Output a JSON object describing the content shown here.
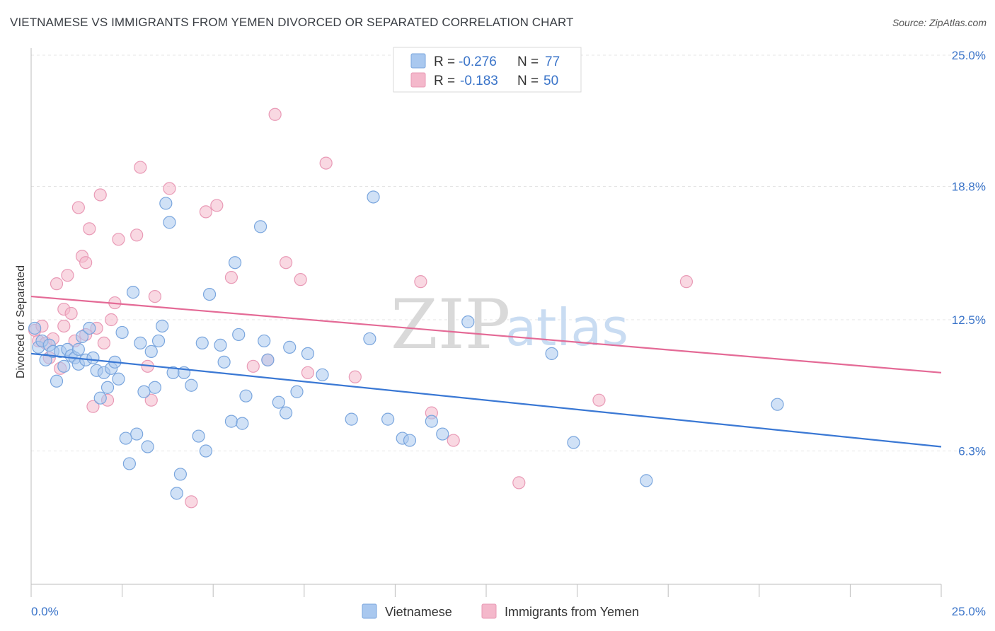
{
  "header": {
    "title": "VIETNAMESE VS IMMIGRANTS FROM YEMEN DIVORCED OR SEPARATED CORRELATION CHART",
    "source": "Source: ZipAtlas.com"
  },
  "watermark": {
    "zip": "ZIP",
    "atlas": "atlas"
  },
  "legend": {
    "r_label": "R =",
    "n_label": "N =",
    "rows": [
      {
        "r": "-0.276",
        "n": "77",
        "color": "#a9c8ef"
      },
      {
        "r": "-0.183",
        "n": "50",
        "color": "#f4b8cb"
      }
    ]
  },
  "bottom_legend": {
    "items": [
      "Vietnamese",
      "Immigrants from Yemen"
    ]
  },
  "chart_data": {
    "type": "scatter",
    "title": "VIETNAMESE VS IMMIGRANTS FROM YEMEN DIVORCED OR SEPARATED CORRELATION CHART",
    "xlabel": "",
    "ylabel": "Divorced or Separated",
    "xlim": [
      0,
      25
    ],
    "ylim": [
      0,
      25
    ],
    "x_tick_labels": [
      "0.0%",
      "25.0%"
    ],
    "y_tick_labels": [
      "6.3%",
      "12.5%",
      "18.8%",
      "25.0%"
    ],
    "y_ticks": [
      6.3,
      12.5,
      18.8,
      25.0
    ],
    "grid": true,
    "legend_position": "top-center",
    "colors": {
      "vietnamese": "#3a78d4",
      "yemen": "#e46a96",
      "vietnamese_fill": "#a9c8ef",
      "yemen_fill": "#f4b8cb"
    },
    "series": [
      {
        "name": "Vietnamese",
        "trend": {
          "x": [
            0,
            25
          ],
          "y": [
            10.9,
            6.5
          ]
        },
        "points": [
          [
            0.1,
            12.1
          ],
          [
            0.2,
            11.2
          ],
          [
            0.3,
            11.5
          ],
          [
            0.4,
            10.6
          ],
          [
            0.5,
            11.3
          ],
          [
            0.6,
            11.0
          ],
          [
            0.7,
            9.6
          ],
          [
            0.8,
            11.0
          ],
          [
            0.9,
            10.3
          ],
          [
            1.0,
            11.1
          ],
          [
            1.1,
            10.8
          ],
          [
            1.2,
            10.7
          ],
          [
            1.3,
            10.4
          ],
          [
            1.4,
            11.7
          ],
          [
            1.5,
            10.6
          ],
          [
            1.6,
            12.1
          ],
          [
            1.7,
            10.7
          ],
          [
            1.8,
            10.1
          ],
          [
            1.9,
            8.8
          ],
          [
            2.0,
            10.0
          ],
          [
            2.1,
            9.3
          ],
          [
            2.2,
            10.2
          ],
          [
            2.3,
            10.5
          ],
          [
            2.4,
            9.7
          ],
          [
            2.5,
            11.9
          ],
          [
            2.6,
            6.9
          ],
          [
            2.7,
            5.7
          ],
          [
            2.8,
            13.8
          ],
          [
            2.9,
            7.1
          ],
          [
            3.0,
            11.4
          ],
          [
            3.1,
            9.1
          ],
          [
            3.2,
            6.5
          ],
          [
            3.3,
            11.0
          ],
          [
            3.4,
            9.3
          ],
          [
            3.5,
            11.5
          ],
          [
            3.6,
            12.2
          ],
          [
            3.7,
            18.0
          ],
          [
            3.8,
            17.1
          ],
          [
            3.9,
            10.0
          ],
          [
            4.0,
            4.3
          ],
          [
            4.1,
            5.2
          ],
          [
            4.2,
            10.0
          ],
          [
            4.4,
            9.4
          ],
          [
            4.6,
            7.0
          ],
          [
            4.7,
            11.4
          ],
          [
            4.8,
            6.3
          ],
          [
            4.9,
            13.7
          ],
          [
            5.2,
            11.3
          ],
          [
            5.3,
            10.5
          ],
          [
            5.5,
            7.7
          ],
          [
            5.6,
            15.2
          ],
          [
            5.7,
            11.8
          ],
          [
            5.8,
            7.6
          ],
          [
            5.9,
            8.9
          ],
          [
            6.3,
            16.9
          ],
          [
            6.4,
            11.5
          ],
          [
            6.5,
            10.6
          ],
          [
            6.8,
            8.6
          ],
          [
            7.0,
            8.1
          ],
          [
            7.1,
            11.2
          ],
          [
            7.3,
            9.1
          ],
          [
            7.6,
            10.9
          ],
          [
            8.0,
            9.9
          ],
          [
            8.8,
            7.8
          ],
          [
            9.3,
            11.6
          ],
          [
            9.4,
            18.3
          ],
          [
            9.8,
            7.8
          ],
          [
            10.2,
            6.9
          ],
          [
            10.4,
            6.8
          ],
          [
            11.0,
            7.7
          ],
          [
            11.3,
            7.1
          ],
          [
            12.0,
            12.4
          ],
          [
            14.3,
            10.9
          ],
          [
            14.9,
            6.7
          ],
          [
            16.9,
            4.9
          ],
          [
            20.5,
            8.5
          ],
          [
            1.3,
            11.1
          ]
        ]
      },
      {
        "name": "Immigrants from Yemen",
        "trend": {
          "x": [
            0,
            25
          ],
          "y": [
            13.6,
            10.0
          ]
        },
        "points": [
          [
            0.1,
            12.0
          ],
          [
            0.2,
            11.5
          ],
          [
            0.3,
            12.2
          ],
          [
            0.4,
            11.4
          ],
          [
            0.5,
            10.7
          ],
          [
            0.6,
            11.6
          ],
          [
            0.7,
            14.2
          ],
          [
            0.8,
            10.2
          ],
          [
            0.9,
            13.0
          ],
          [
            1.0,
            14.6
          ],
          [
            1.1,
            12.8
          ],
          [
            1.2,
            11.5
          ],
          [
            1.3,
            17.8
          ],
          [
            1.4,
            15.5
          ],
          [
            1.5,
            15.2
          ],
          [
            1.6,
            16.8
          ],
          [
            1.7,
            8.4
          ],
          [
            1.8,
            12.1
          ],
          [
            1.9,
            18.4
          ],
          [
            2.0,
            11.4
          ],
          [
            2.1,
            8.7
          ],
          [
            2.2,
            12.5
          ],
          [
            2.3,
            13.3
          ],
          [
            2.4,
            16.3
          ],
          [
            2.9,
            16.5
          ],
          [
            3.0,
            19.7
          ],
          [
            3.2,
            10.3
          ],
          [
            3.3,
            8.7
          ],
          [
            3.4,
            13.6
          ],
          [
            3.8,
            18.7
          ],
          [
            4.4,
            3.9
          ],
          [
            4.8,
            17.6
          ],
          [
            5.1,
            17.9
          ],
          [
            5.5,
            14.5
          ],
          [
            6.1,
            10.3
          ],
          [
            6.5,
            10.6
          ],
          [
            6.7,
            22.2
          ],
          [
            7.0,
            15.2
          ],
          [
            7.4,
            14.4
          ],
          [
            7.6,
            10.0
          ],
          [
            8.1,
            19.9
          ],
          [
            8.9,
            9.8
          ],
          [
            10.7,
            14.3
          ],
          [
            11.0,
            8.1
          ],
          [
            11.6,
            6.8
          ],
          [
            13.4,
            4.8
          ],
          [
            15.6,
            8.7
          ],
          [
            18.0,
            14.3
          ],
          [
            0.9,
            12.2
          ],
          [
            1.5,
            11.8
          ]
        ]
      }
    ]
  }
}
